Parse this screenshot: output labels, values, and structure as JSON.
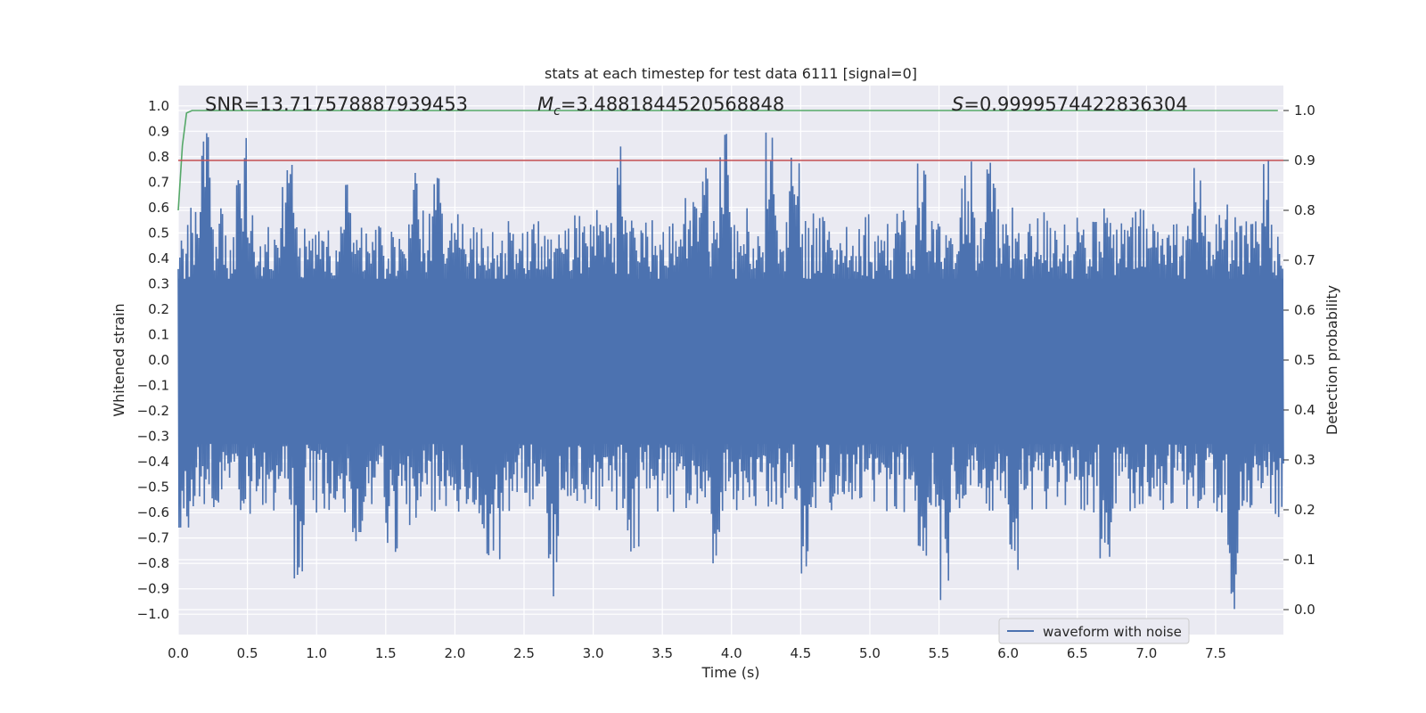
{
  "chart_data": {
    "type": "line",
    "title": "stats at each timestep for test data 6111 [signal=0]",
    "xlabel": "Time (s)",
    "ylabel": "Whitened strain",
    "y2label": "Detection probability",
    "xlim": [
      0.0,
      7.99
    ],
    "ylim": [
      -1.08,
      1.08
    ],
    "y2lim": [
      -0.05,
      1.05
    ],
    "grid": true,
    "legend_placement": "lower-right",
    "x_ticks": [
      "0.0",
      "0.5",
      "1.0",
      "1.5",
      "2.0",
      "2.5",
      "3.0",
      "3.5",
      "4.0",
      "4.5",
      "5.0",
      "5.5",
      "6.0",
      "6.5",
      "7.0",
      "7.5"
    ],
    "y_ticks": [
      "1.0",
      "0.9",
      "0.8",
      "0.7",
      "0.6",
      "0.5",
      "0.4",
      "0.3",
      "0.2",
      "0.1",
      "0.0",
      "−0.1",
      "−0.2",
      "−0.3",
      "−0.4",
      "−0.5",
      "−0.6",
      "−0.7",
      "−0.8",
      "−0.9",
      "−1.0"
    ],
    "y2_ticks": [
      "1.0",
      "0.9",
      "0.8",
      "0.7",
      "0.6",
      "0.5",
      "0.4",
      "0.3",
      "0.2",
      "0.1",
      "0.0"
    ],
    "annotations": {
      "snr": "SNR=13.717578887939453",
      "mc_symbol": "M",
      "mc_sub": "c",
      "mc_value": "=3.4881844520568848",
      "s_symbol": "S",
      "s_value": "=0.9999574422836304"
    },
    "series": [
      {
        "name": "waveform with noise",
        "color": "#4c72b0",
        "axis": "left",
        "envelope_upper": [
          0.55,
          0.6,
          0.95,
          0.6,
          0.55,
          0.88,
          0.6,
          0.55,
          0.6,
          0.81,
          0.58,
          0.55,
          0.6,
          0.55,
          0.8,
          0.55,
          0.58,
          0.55,
          0.55,
          0.55,
          0.8,
          0.6,
          0.82,
          0.55,
          0.58,
          0.55,
          0.6,
          0.55,
          0.55,
          0.6,
          0.55,
          0.58,
          0.55,
          0.55,
          0.6,
          0.55,
          0.6,
          0.55,
          0.85,
          0.55,
          0.58,
          0.55,
          0.6,
          0.55,
          0.65,
          0.8,
          0.6,
          0.94,
          0.55,
          0.6,
          0.6,
          0.9,
          0.6,
          0.8,
          0.55,
          0.6,
          0.55,
          0.55,
          0.6,
          0.6,
          0.55,
          0.55,
          0.6,
          0.55,
          0.8,
          0.6,
          0.55,
          0.58,
          0.82,
          0.6,
          0.81,
          0.6,
          0.6,
          0.55,
          0.58,
          0.6,
          0.6,
          0.55,
          0.6,
          0.55,
          0.62,
          0.55,
          0.58,
          0.6,
          0.6,
          0.55,
          0.6,
          0.55,
          0.82,
          0.58,
          0.62,
          0.62,
          0.55,
          0.6,
          0.8,
          0.58
        ],
        "envelope_lower": [
          -0.67,
          -0.6,
          -0.58,
          -0.6,
          -0.6,
          -0.6,
          -0.62,
          -0.6,
          -0.6,
          -0.6,
          -0.87,
          -0.6,
          -0.6,
          -0.6,
          -0.6,
          -0.75,
          -0.6,
          -0.6,
          -0.78,
          -0.6,
          -0.65,
          -0.6,
          -0.6,
          -0.6,
          -0.6,
          -0.6,
          -0.89,
          -0.8,
          -0.6,
          -0.6,
          -0.6,
          -0.6,
          -0.93,
          -0.6,
          -0.6,
          -0.6,
          -0.6,
          -0.6,
          -0.6,
          -0.78,
          -0.6,
          -0.6,
          -0.6,
          -0.6,
          -0.6,
          -0.6,
          -0.8,
          -0.6,
          -0.6,
          -0.6,
          -0.6,
          -0.6,
          -0.6,
          -0.6,
          -0.88,
          -0.6,
          -0.6,
          -0.6,
          -0.6,
          -0.6,
          -0.6,
          -0.6,
          -0.6,
          -0.6,
          -0.84,
          -0.6,
          -0.98,
          -0.6,
          -0.6,
          -0.6,
          -0.6,
          -0.6,
          -0.84,
          -0.6,
          -0.6,
          -0.6,
          -0.6,
          -0.6,
          -0.6,
          -0.6,
          -0.82,
          -0.6,
          -0.6,
          -0.6,
          -0.6,
          -0.6,
          -0.6,
          -0.6,
          -0.6,
          -0.6,
          -0.6,
          -0.99,
          -0.6,
          -0.6,
          -0.6,
          -0.62
        ]
      },
      {
        "name": "",
        "color": "#55a868",
        "axis": "right",
        "x": [
          0.0,
          0.03,
          0.06,
          0.1,
          0.15,
          7.95
        ],
        "y": [
          0.8,
          0.93,
          0.995,
          1.0,
          1.0,
          1.0
        ]
      },
      {
        "name": "",
        "color": "#c44e52",
        "axis": "right",
        "x": [
          0.0,
          7.99
        ],
        "y": [
          0.9,
          0.9
        ]
      }
    ]
  }
}
